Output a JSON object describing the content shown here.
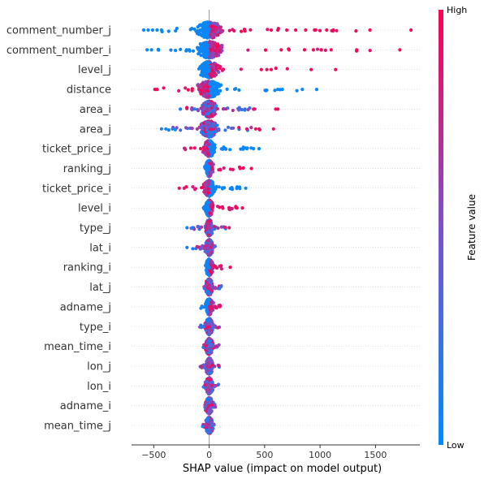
{
  "chart_data": {
    "type": "scatter",
    "subtype": "shap-beeswarm",
    "xlabel": "SHAP value (impact on model output)",
    "xlim": [
      -700,
      1900
    ],
    "xticks": [
      -500,
      0,
      500,
      1000,
      1500
    ],
    "zero_line": true,
    "colorbar": {
      "title": "Feature value",
      "high_label": "High",
      "low_label": "Low",
      "low_color": "#008bfb",
      "mid_color": "#7c52c6",
      "high_color": "#ff0052"
    },
    "features": [
      {
        "name": "comment_number_j",
        "min": -590,
        "max": 1820,
        "low_side": "negative",
        "outliers": [
          -590,
          -550,
          -510,
          -470,
          -430,
          560,
          620,
          700,
          780,
          870,
          950,
          1060,
          1120,
          1450,
          1820
        ]
      },
      {
        "name": "comment_number_i",
        "min": -560,
        "max": 1720,
        "low_side": "negative",
        "outliers": [
          -560,
          -520,
          -460,
          650,
          720,
          860,
          940,
          1010,
          1100,
          1330,
          1720
        ]
      },
      {
        "name": "level_j",
        "min": -80,
        "max": 1140,
        "low_side": "negative",
        "outliers": [
          470,
          520,
          560,
          920,
          1140
        ]
      },
      {
        "name": "distance",
        "min": -490,
        "max": 970,
        "low_side": "positive",
        "outliers": [
          -490,
          -470,
          620,
          660,
          840,
          970
        ]
      },
      {
        "name": "area_i",
        "min": -260,
        "max": 620,
        "low_side": "mixed",
        "outliers": [
          -260,
          -130,
          400,
          410,
          600,
          620
        ]
      },
      {
        "name": "area_j",
        "min": -430,
        "max": 580,
        "low_side": "mixed",
        "outliers": [
          -430,
          -390,
          -330,
          340,
          420,
          450,
          580
        ]
      },
      {
        "name": "ticket_price_j",
        "min": -270,
        "max": 450,
        "low_side": "positive",
        "outliers": [
          340,
          400,
          450
        ]
      },
      {
        "name": "ranking_j",
        "min": -50,
        "max": 380,
        "low_side": "negative",
        "outliers": [
          280,
          380
        ]
      },
      {
        "name": "ticket_price_i",
        "min": -270,
        "max": 330,
        "low_side": "positive",
        "outliers": [
          -270,
          330
        ]
      },
      {
        "name": "level_i",
        "min": -60,
        "max": 300,
        "low_side": "negative",
        "outliers": [
          250,
          300
        ]
      },
      {
        "name": "type_j",
        "min": -200,
        "max": 180,
        "low_side": "mixed",
        "outliers": [
          -200,
          -150,
          180
        ]
      },
      {
        "name": "lat_i",
        "min": -200,
        "max": 70,
        "low_side": "mixed",
        "outliers": [
          -200
        ]
      },
      {
        "name": "ranking_i",
        "min": -30,
        "max": 190,
        "low_side": "negative",
        "outliers": [
          190
        ]
      },
      {
        "name": "lat_j",
        "min": -60,
        "max": 140,
        "low_side": "mixed",
        "outliers": []
      },
      {
        "name": "adname_j",
        "min": -90,
        "max": 120,
        "low_side": "negative",
        "outliers": []
      },
      {
        "name": "type_i",
        "min": -100,
        "max": 120,
        "low_side": "mixed",
        "outliers": []
      },
      {
        "name": "mean_time_i",
        "min": -70,
        "max": 110,
        "low_side": "mixed",
        "outliers": []
      },
      {
        "name": "lon_j",
        "min": -100,
        "max": 110,
        "low_side": "mixed",
        "outliers": []
      },
      {
        "name": "lon_i",
        "min": -70,
        "max": 110,
        "low_side": "mixed",
        "outliers": []
      },
      {
        "name": "adname_i",
        "min": -60,
        "max": 70,
        "low_side": "mixed",
        "outliers": []
      },
      {
        "name": "mean_time_j",
        "min": -70,
        "max": 60,
        "low_side": "mixed",
        "outliers": []
      }
    ]
  }
}
